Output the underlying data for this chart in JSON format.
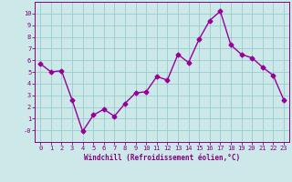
{
  "x": [
    0,
    1,
    2,
    3,
    4,
    5,
    6,
    7,
    8,
    9,
    10,
    11,
    12,
    13,
    14,
    15,
    16,
    17,
    18,
    19,
    20,
    21,
    22,
    23
  ],
  "y": [
    5.7,
    5.0,
    5.1,
    2.6,
    -0.1,
    1.3,
    1.8,
    1.2,
    2.3,
    3.2,
    3.3,
    4.6,
    4.3,
    6.5,
    5.8,
    7.8,
    9.4,
    10.2,
    7.3,
    6.5,
    6.2,
    5.4,
    4.7,
    2.6
  ],
  "line_color": "#990099",
  "marker": "D",
  "markersize": 2.5,
  "linewidth": 1.0,
  "background_color": "#cce8e8",
  "grid_color": "#99cccc",
  "xlabel": "Windchill (Refroidissement éolien,°C)",
  "xlabel_color": "#800080",
  "tick_color": "#800080",
  "xlim": [
    -0.5,
    23.5
  ],
  "ylim": [
    -1,
    11
  ],
  "ytick_vals": [
    0,
    1,
    2,
    3,
    4,
    5,
    6,
    7,
    8,
    9,
    10
  ],
  "ytick_labels": [
    "-0",
    "1",
    "2",
    "3",
    "4",
    "5",
    "6",
    "7",
    "8",
    "9",
    "10"
  ],
  "xticks": [
    0,
    1,
    2,
    3,
    4,
    5,
    6,
    7,
    8,
    9,
    10,
    11,
    12,
    13,
    14,
    15,
    16,
    17,
    18,
    19,
    20,
    21,
    22,
    23
  ],
  "axis_bgcolor": "#cce8e8",
  "spine_color": "#800080",
  "tick_fontsize": 5.0,
  "xlabel_fontsize": 5.5
}
